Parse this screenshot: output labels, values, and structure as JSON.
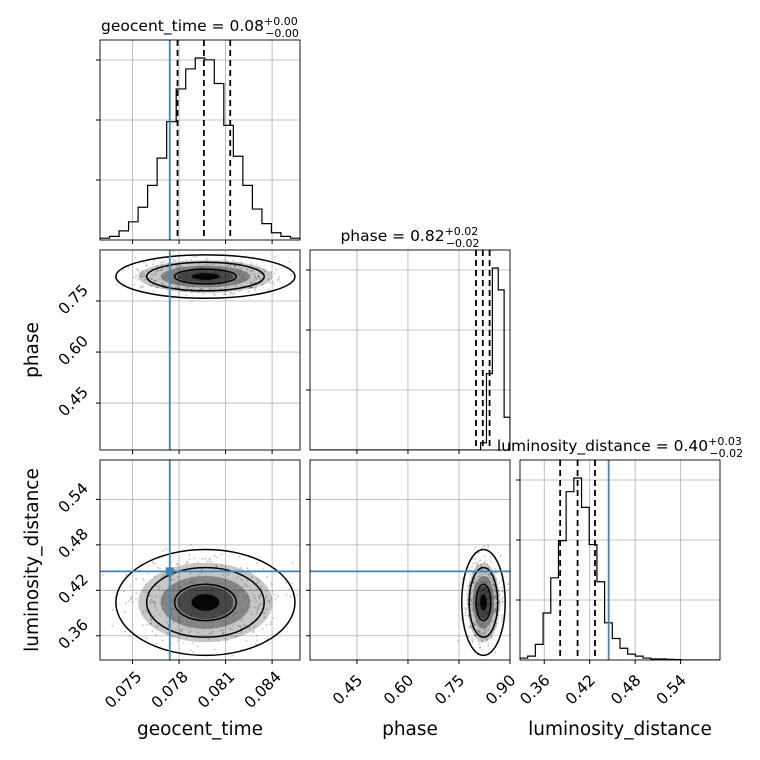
{
  "chart_data": {
    "type": "corner",
    "parameters": [
      "geocent_time",
      "phase",
      "luminosity_distance"
    ],
    "truth_color": "#4682b4",
    "titles": {
      "geocent_time": {
        "name": "geocent_time",
        "median": "0.08",
        "plus": "+0.00",
        "minus": "−0.00"
      },
      "phase": {
        "name": "phase",
        "median": "0.82",
        "plus": "+0.02",
        "minus": "−0.02"
      },
      "luminosity_distance": {
        "name": "luminosity_distance",
        "median": "0.40",
        "plus": "+0.03",
        "minus": "−0.02"
      }
    },
    "axis_labels": {
      "geocent_time": "geocent_time",
      "phase": "phase",
      "luminosity_distance": "luminosity_distance"
    },
    "ranges": {
      "geocent_time": [
        0.0729,
        0.0858
      ],
      "phase": [
        0.312,
        0.9
      ],
      "luminosity_distance": [
        0.328,
        0.592
      ]
    },
    "ticks": {
      "geocent_time": [
        {
          "v": 0.075,
          "label": "0.075"
        },
        {
          "v": 0.078,
          "label": "0.078"
        },
        {
          "v": 0.081,
          "label": "0.081"
        },
        {
          "v": 0.084,
          "label": "0.084"
        }
      ],
      "phase": [
        {
          "v": 0.45,
          "label": "0.45"
        },
        {
          "v": 0.6,
          "label": "0.60"
        },
        {
          "v": 0.75,
          "label": "0.75"
        },
        {
          "v": 0.9,
          "label": "0.90"
        }
      ],
      "luminosity_distance": [
        {
          "v": 0.36,
          "label": "0.36"
        },
        {
          "v": 0.42,
          "label": "0.42"
        },
        {
          "v": 0.48,
          "label": "0.48"
        },
        {
          "v": 0.54,
          "label": "0.54"
        }
      ]
    },
    "truths": {
      "geocent_time": 0.0774,
      "phase": null,
      "luminosity_distance": 0.445
    },
    "quantiles": {
      "geocent_time": [
        0.0779,
        0.0796,
        0.0813
      ],
      "phase": [
        0.8,
        0.82,
        0.84
      ],
      "luminosity_distance": [
        0.381,
        0.404,
        0.427
      ]
    },
    "hist1d": {
      "geocent_time": {
        "edges_range": [
          0.0729,
          0.0858
        ],
        "counts": [
          0.01,
          0.02,
          0.05,
          0.1,
          0.18,
          0.3,
          0.45,
          0.65,
          0.83,
          0.94,
          1.0,
          0.99,
          0.86,
          0.63,
          0.46,
          0.3,
          0.17,
          0.09,
          0.04,
          0.02,
          0.01
        ]
      },
      "phase": {
        "edges_range": [
          0.312,
          0.9
        ],
        "counts": [
          0,
          0,
          0,
          0,
          0,
          0,
          0,
          0,
          0,
          0,
          0,
          0,
          0,
          0,
          0,
          0,
          0,
          0,
          0,
          0,
          0,
          0,
          0,
          0,
          0,
          0,
          0,
          0,
          0,
          0.04,
          0.42,
          1.0,
          0.88,
          0.18
        ]
      },
      "luminosity_distance": {
        "edges_range": [
          0.328,
          0.592
        ],
        "counts": [
          0.01,
          0.02,
          0.08,
          0.24,
          0.42,
          0.61,
          0.86,
          0.93,
          0.78,
          0.59,
          0.4,
          0.19,
          0.11,
          0.06,
          0.03,
          0.02,
          0.01,
          0.005,
          0.005,
          0.003,
          0.002,
          0.0,
          0.0,
          0.0,
          0.0,
          0.0
        ]
      }
    },
    "hist2d": {
      "phase|geocent_time": {
        "center": [
          0.0797,
          0.822
        ],
        "sigma": [
          0.0019,
          0.021
        ],
        "rho": 0.0
      },
      "luminosity_distance|geocent_time": {
        "center": [
          0.0797,
          0.404
        ],
        "sigma": [
          0.0019,
          0.023
        ],
        "rho": 0.0
      },
      "luminosity_distance|phase": {
        "center": [
          0.822,
          0.404
        ],
        "sigma": [
          0.021,
          0.023
        ],
        "rho": 0.0
      }
    },
    "grid": true
  }
}
